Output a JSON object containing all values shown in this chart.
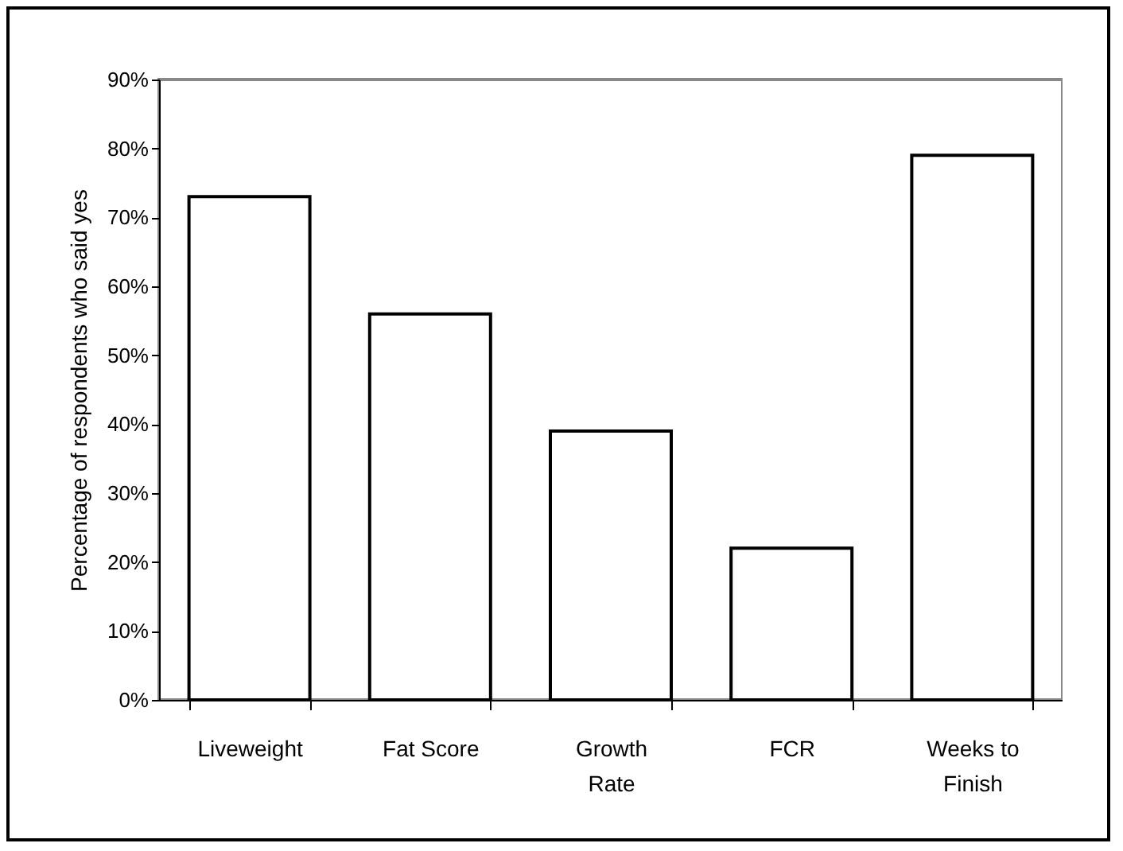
{
  "chart_data": {
    "type": "bar",
    "ylabel": "Percentage of respondents who said yes",
    "categories": [
      "Liveweight",
      "Fat Score",
      "Growth Rate",
      "FCR",
      "Weeks to Finish"
    ],
    "values": [
      73,
      56,
      39,
      22,
      79
    ],
    "color": "#ffffff",
    "ylim": [
      0,
      90
    ],
    "yticks": [
      {
        "value": 0,
        "label": "0%"
      },
      {
        "value": 10,
        "label": "10%"
      },
      {
        "value": 20,
        "label": "20%"
      },
      {
        "value": 30,
        "label": "30%"
      },
      {
        "value": 40,
        "label": "40%"
      },
      {
        "value": 50,
        "label": "50%"
      },
      {
        "value": 60,
        "label": "60%"
      },
      {
        "value": 70,
        "label": "70%"
      },
      {
        "value": 80,
        "label": "80%"
      },
      {
        "value": 90,
        "label": "90%"
      }
    ],
    "grid": false
  }
}
